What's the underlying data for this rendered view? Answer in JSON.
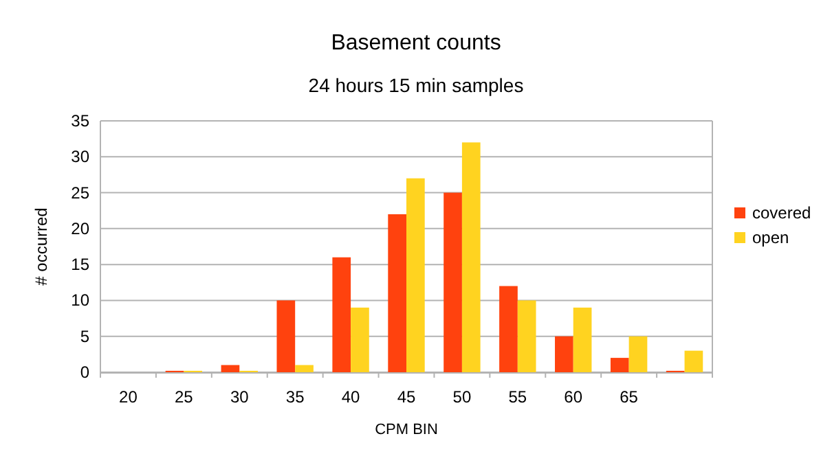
{
  "chart_data": {
    "type": "bar",
    "title": "Basement counts",
    "subtitle": "24 hours 15 min samples",
    "xlabel": "CPM BIN",
    "ylabel": "# occurred",
    "categories": [
      "20",
      "25",
      "30",
      "35",
      "40",
      "45",
      "50",
      "55",
      "60",
      "65",
      null
    ],
    "series": [
      {
        "name": "covered",
        "color": "#ff420e",
        "values": [
          0,
          0.2,
          1,
          10,
          16,
          22,
          25,
          12,
          5,
          2,
          0.2
        ]
      },
      {
        "name": "open",
        "color": "#ffd320",
        "values": [
          0,
          0.2,
          0.2,
          1,
          9,
          27,
          32,
          10,
          9,
          5,
          3
        ]
      }
    ],
    "ylim": [
      0,
      35
    ],
    "yticks": [
      0,
      5,
      10,
      15,
      20,
      25,
      30,
      35
    ],
    "grid": "y",
    "legend": "right"
  }
}
